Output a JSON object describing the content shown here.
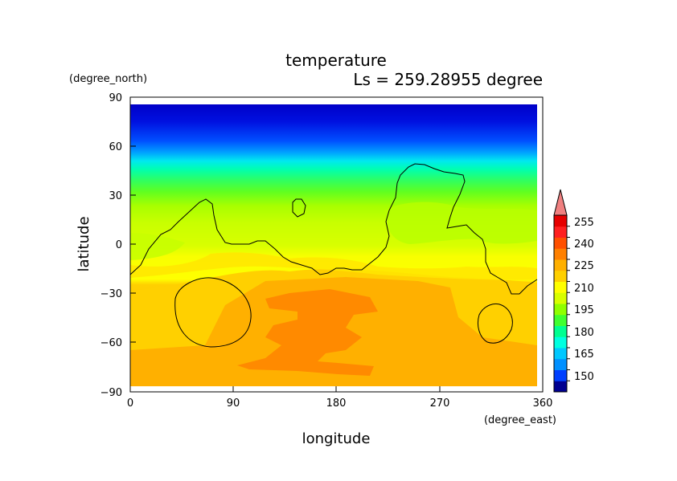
{
  "chart_data": {
    "type": "heatmap",
    "title": "temperature",
    "subtitle": "Ls = 259.28955 degree",
    "xlabel": "longitude",
    "ylabel": "latitude",
    "x_unit": "(degree_east)",
    "y_unit": "(degree_north)",
    "xlim": [
      0,
      360
    ],
    "ylim": [
      -90,
      90
    ],
    "x_ticks": [
      "0",
      "90",
      "180",
      "270",
      "360"
    ],
    "y_ticks": [
      "90",
      "60",
      "30",
      "0",
      "−30",
      "−60",
      "−90"
    ],
    "legend": {
      "placement": "right",
      "labels": [
        "255",
        "240",
        "225",
        "210",
        "195",
        "180",
        "165",
        "150"
      ]
    },
    "colorbar_colors": [
      "#000090",
      "#0040ff",
      "#0090ff",
      "#00c8ff",
      "#00ffe0",
      "#00ff90",
      "#40ff30",
      "#90ff00",
      "#d8ff00",
      "#ffff00",
      "#ffd000",
      "#ffb000",
      "#ff8000",
      "#ff5000",
      "#ff2020",
      "#e60000",
      "#f08080"
    ]
  }
}
